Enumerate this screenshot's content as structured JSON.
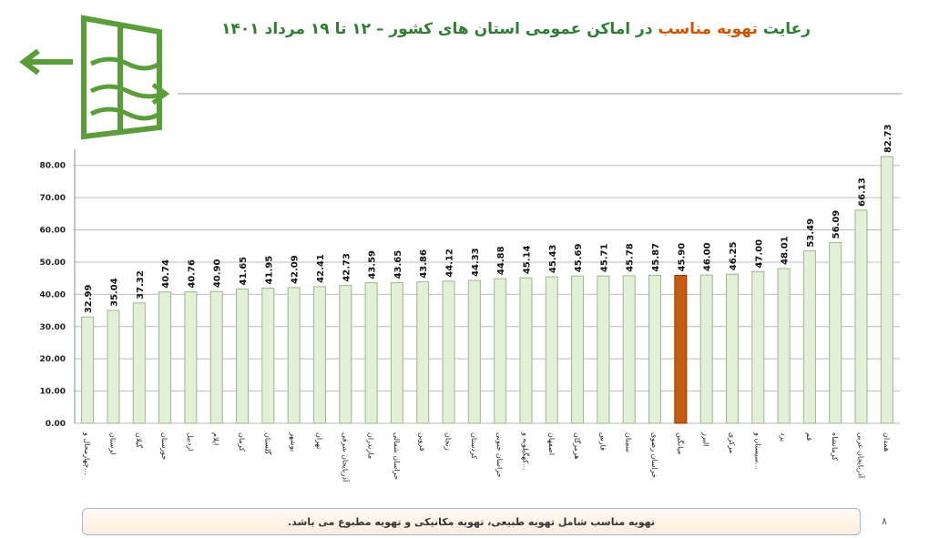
{
  "title_parts": [
    "رعایت ",
    "تهویه مناسب",
    " در اماکن عمومی استان های کشور  –  ۱۲ تا ۱۹ مرداد ۱۴۰۱"
  ],
  "note": "تهویه مناسب شامل تهویه طبیعی، تهویه مکانیکی و تهویه مطبوع می باشد.",
  "page_number": "۸",
  "chart_data": {
    "type": "bar",
    "categories": [
      "چهارمحال و...",
      "لرستان",
      "گیلان",
      "خوزستان",
      "اردبیل",
      "ایلام",
      "کرمان",
      "گلستان",
      "بوشهر",
      "تهران",
      "آذربایجان شرقی",
      "مازندران",
      "خراسان شمالی",
      "قزوین",
      "زنجان",
      "کردستان",
      "خراسان جنوبی",
      "کهگیلویه و...",
      "اصفهان",
      "هرمزگان",
      "فارس",
      "سمنان",
      "خراسان رضوی",
      "میانگین",
      "البرز",
      "مرکزی",
      "سیستان و...",
      "یزد",
      "قم",
      "کرمانشاه",
      "آذربایجان غربی",
      "همدان"
    ],
    "values": [
      32.99,
      35.04,
      37.32,
      40.74,
      40.76,
      40.9,
      41.65,
      41.95,
      42.09,
      42.41,
      42.73,
      43.59,
      43.65,
      43.86,
      44.12,
      44.33,
      44.88,
      45.14,
      45.43,
      45.69,
      45.71,
      45.78,
      45.87,
      45.9,
      46.0,
      46.25,
      47.0,
      48.01,
      53.49,
      56.09,
      66.13,
      82.73
    ],
    "value_labels": [
      "32.99",
      "35.04",
      "37.32",
      "40.74",
      "40.76",
      "40.90",
      "41.65",
      "41.95",
      "42.09",
      "42.41",
      "42.73",
      "43.59",
      "43.65",
      "43.86",
      "44.12",
      "44.33",
      "44.88",
      "45.14",
      "45.43",
      "45.69",
      "45.71",
      "45.78",
      "45.87",
      "45.90",
      "46.00",
      "46.25",
      "47.00",
      "48.01",
      "53.49",
      "56.09",
      "66.13",
      "82.73"
    ],
    "colors": [
      "#e3f0d8",
      "#e3f0d8",
      "#e3f0d8",
      "#e3f0d8",
      "#e3f0d8",
      "#e3f0d8",
      "#e3f0d8",
      "#e3f0d8",
      "#e3f0d8",
      "#e3f0d8",
      "#e3f0d8",
      "#e3f0d8",
      "#e3f0d8",
      "#e3f0d8",
      "#e3f0d8",
      "#e3f0d8",
      "#e3f0d8",
      "#e3f0d8",
      "#e3f0d8",
      "#e3f0d8",
      "#e3f0d8",
      "#e3f0d8",
      "#e3f0d8",
      "#c55a11",
      "#e3f0d8",
      "#e3f0d8",
      "#e3f0d8",
      "#e3f0d8",
      "#e3f0d8",
      "#e3f0d8",
      "#e3f0d8",
      "#e3f0d8"
    ],
    "ylim": [
      0,
      85
    ],
    "yticks": [
      {
        "value": 0,
        "label": "0.00"
      },
      {
        "value": 10,
        "label": "10.00"
      },
      {
        "value": 20,
        "label": "20.00"
      },
      {
        "value": 30,
        "label": "30.00"
      },
      {
        "value": 40,
        "label": "40.00"
      },
      {
        "value": 50,
        "label": "50.00"
      },
      {
        "value": 60,
        "label": "60.00"
      },
      {
        "value": 70,
        "label": "70.00"
      },
      {
        "value": 80,
        "label": "80.00"
      }
    ],
    "grid": true
  }
}
